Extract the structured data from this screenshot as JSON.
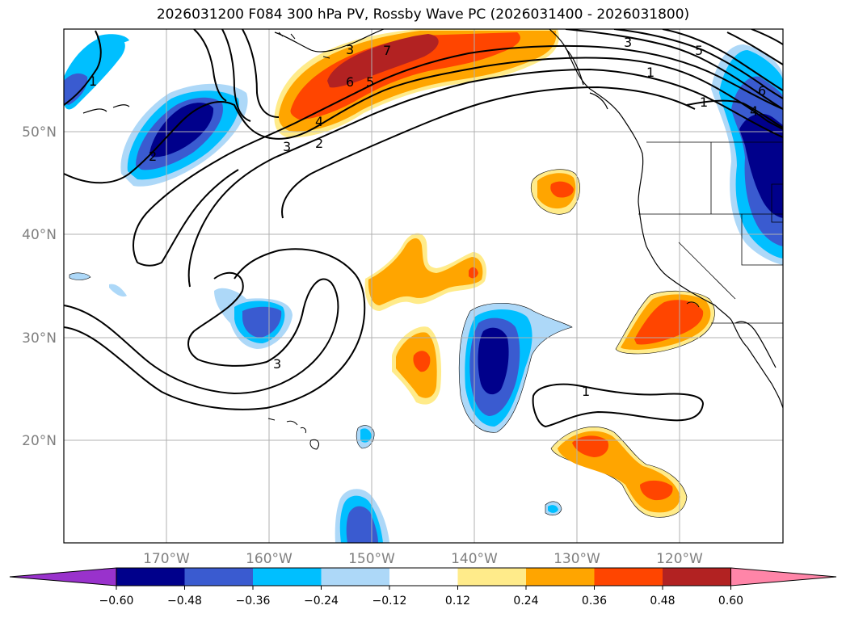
{
  "title": "2026031200 F084 300 hPa PV, Rossby Wave PC (2026031400 - 2026031800)",
  "map": {
    "lat_labels": [
      "50°N",
      "40°N",
      "30°N",
      "20°N"
    ],
    "lon_labels": [
      "170°W",
      "160°W",
      "150°W",
      "140°W",
      "130°W",
      "120°W"
    ],
    "lat_range": [
      10,
      60
    ],
    "lon_range": [
      -180,
      -110
    ],
    "colors": {
      "neg_060": "#9932cc",
      "neg_048": "#00008b",
      "neg_036": "#3a5bd0",
      "neg_024": "#00bfff",
      "neg_012": "#add8f8",
      "zero": "#ffffff",
      "pos_012": "#ffeb8a",
      "pos_024": "#ffa500",
      "pos_036": "#ff4500",
      "pos_048": "#b22222",
      "pos_060": "#ff85a8"
    },
    "contour_labels": [
      "1",
      "2",
      "3",
      "4",
      "5",
      "6",
      "7",
      "3",
      "5",
      "6",
      "4",
      "1",
      "2",
      "3",
      "3",
      "1",
      "1"
    ]
  },
  "colorbar": {
    "ticks": [
      "−0.60",
      "−0.48",
      "−0.36",
      "−0.24",
      "−0.12",
      "0.12",
      "0.24",
      "0.36",
      "0.48",
      "0.60"
    ]
  }
}
